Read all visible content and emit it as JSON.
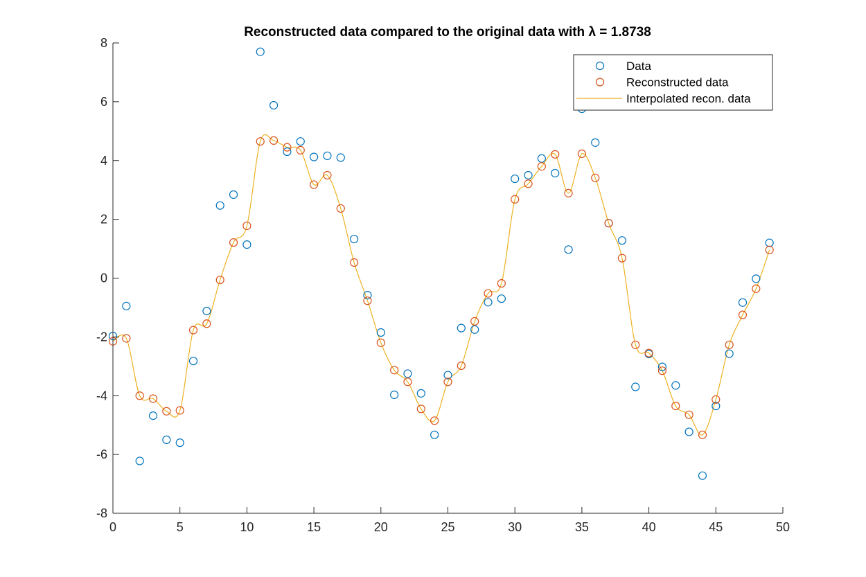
{
  "chart_data": {
    "type": "scatter",
    "title": "Reconstructed data compared to the original data with λ = 1.8738",
    "xlabel": "",
    "ylabel": "",
    "xlim": [
      0,
      50
    ],
    "ylim": [
      -8,
      8
    ],
    "xticks": [
      0,
      5,
      10,
      15,
      20,
      25,
      30,
      35,
      40,
      45,
      50
    ],
    "yticks": [
      -8,
      -6,
      -4,
      -2,
      0,
      2,
      4,
      6,
      8
    ],
    "grid": false,
    "legend_position": "top-right",
    "colors": {
      "data": "#0072BD",
      "reconstructed": "#D95319",
      "interpolated": "#EDB120",
      "axis": "#262626"
    },
    "x": [
      0,
      1,
      2,
      3,
      4,
      5,
      6,
      7,
      8,
      9,
      10,
      11,
      12,
      13,
      14,
      15,
      16,
      17,
      18,
      19,
      20,
      21,
      22,
      23,
      24,
      25,
      26,
      27,
      28,
      29,
      30,
      31,
      32,
      33,
      34,
      35,
      36,
      37,
      38,
      39,
      40,
      41,
      42,
      43,
      44,
      45,
      46,
      47,
      48,
      49
    ],
    "series": [
      {
        "name": "Data",
        "style": "markers",
        "values": [
          -1.97,
          -0.95,
          -6.22,
          -4.68,
          -5.5,
          -5.6,
          -2.82,
          -1.12,
          2.47,
          2.84,
          1.14,
          7.7,
          5.88,
          4.3,
          4.65,
          4.12,
          4.16,
          4.1,
          1.33,
          -0.58,
          -1.85,
          -3.97,
          -3.25,
          -3.92,
          -5.33,
          -3.3,
          -1.7,
          -1.75,
          -0.82,
          -0.7,
          3.38,
          3.5,
          4.07,
          3.57,
          0.97,
          5.76,
          4.61,
          1.87,
          1.28,
          -3.7,
          -2.58,
          -3.02,
          -3.65,
          -5.23,
          -6.72,
          -4.35,
          -2.57,
          -0.83,
          -0.02,
          1.2
        ]
      },
      {
        "name": "Reconstructed data",
        "style": "markers",
        "values": [
          -2.15,
          -2.05,
          -4.0,
          -4.1,
          -4.53,
          -4.5,
          -1.77,
          -1.55,
          -0.06,
          1.21,
          1.78,
          4.65,
          4.68,
          4.45,
          4.35,
          3.18,
          3.5,
          2.37,
          0.53,
          -0.77,
          -2.2,
          -3.13,
          -3.53,
          -4.45,
          -4.85,
          -3.53,
          -2.98,
          -1.47,
          -0.52,
          -0.18,
          2.68,
          3.21,
          3.8,
          4.21,
          2.89,
          4.23,
          3.41,
          1.87,
          0.68,
          -2.27,
          -2.55,
          -3.15,
          -4.35,
          -4.65,
          -5.33,
          -4.13,
          -2.27,
          -1.25,
          -0.36,
          0.96
        ]
      },
      {
        "name": "Interpolated recon. data",
        "style": "line"
      }
    ]
  }
}
